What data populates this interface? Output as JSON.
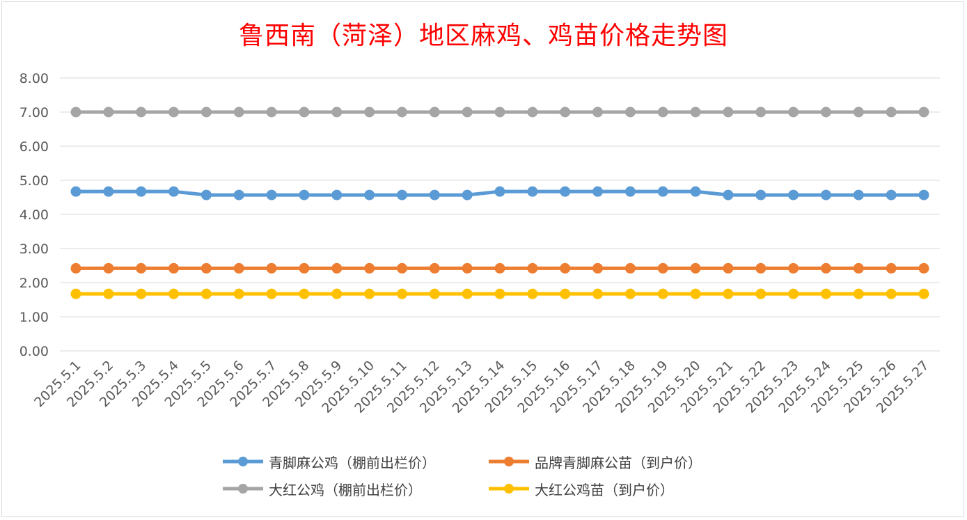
{
  "chart_data": {
    "type": "line",
    "title": "鲁西南（菏泽）地区麻鸡、鸡苗价格走势图",
    "ylim": [
      0,
      8
    ],
    "yticks": [
      "0.00",
      "1.00",
      "2.00",
      "3.00",
      "4.00",
      "5.00",
      "6.00",
      "7.00",
      "8.00"
    ],
    "categories": [
      "2025.5.1",
      "2025.5.2",
      "2025.5.3",
      "2025.5.4",
      "2025.5.5",
      "2025.5.6",
      "2025.5.7",
      "2025.5.8",
      "2025.5.9",
      "2025.5.10",
      "2025.5.11",
      "2025.5.12",
      "2025.5.13",
      "2025.5.14",
      "2025.5.15",
      "2025.5.16",
      "2025.5.17",
      "2025.5.18",
      "2025.5.19",
      "2025.5.20",
      "2025.5.21",
      "2025.5.22",
      "2025.5.23",
      "2025.5.24",
      "2025.5.25",
      "2025.5.26",
      "2025.5.27"
    ],
    "grid": true,
    "legend_position": "bottom",
    "series": [
      {
        "name": "青脚麻公鸡（棚前出栏价）",
        "color": "#5b9bd5",
        "values": [
          4.67,
          4.67,
          4.67,
          4.67,
          4.57,
          4.57,
          4.57,
          4.57,
          4.57,
          4.57,
          4.57,
          4.57,
          4.57,
          4.67,
          4.67,
          4.67,
          4.67,
          4.67,
          4.67,
          4.67,
          4.57,
          4.57,
          4.57,
          4.57,
          4.57,
          4.57,
          4.57
        ]
      },
      {
        "name": "品牌青脚麻公苗（到户价）",
        "color": "#ed7d31",
        "values": [
          2.42,
          2.42,
          2.42,
          2.42,
          2.42,
          2.42,
          2.42,
          2.42,
          2.42,
          2.42,
          2.42,
          2.42,
          2.42,
          2.42,
          2.42,
          2.42,
          2.42,
          2.42,
          2.42,
          2.42,
          2.42,
          2.42,
          2.42,
          2.42,
          2.42,
          2.42,
          2.42
        ]
      },
      {
        "name": "大红公鸡（棚前出栏价）",
        "color": "#a5a5a5",
        "values": [
          7.0,
          7.0,
          7.0,
          7.0,
          7.0,
          7.0,
          7.0,
          7.0,
          7.0,
          7.0,
          7.0,
          7.0,
          7.0,
          7.0,
          7.0,
          7.0,
          7.0,
          7.0,
          7.0,
          7.0,
          7.0,
          7.0,
          7.0,
          7.0,
          7.0,
          7.0,
          7.0
        ]
      },
      {
        "name": "大红公鸡苗（到户价）",
        "color": "#ffc000",
        "values": [
          1.67,
          1.67,
          1.67,
          1.67,
          1.67,
          1.67,
          1.67,
          1.67,
          1.67,
          1.67,
          1.67,
          1.67,
          1.67,
          1.67,
          1.67,
          1.67,
          1.67,
          1.67,
          1.67,
          1.67,
          1.67,
          1.67,
          1.67,
          1.67,
          1.67,
          1.67,
          1.67
        ]
      }
    ]
  }
}
